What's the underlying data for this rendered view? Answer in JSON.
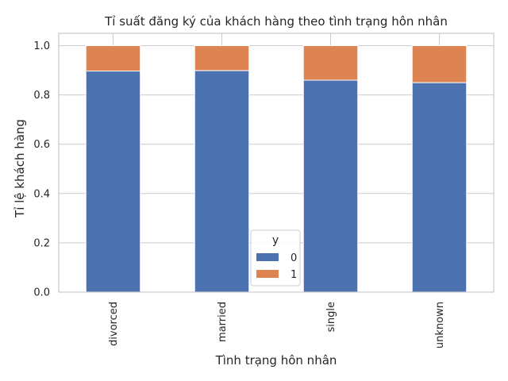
{
  "chart_data": {
    "type": "bar",
    "stacked": true,
    "title": "Tỉ suất đăng ký của khách hàng theo tình trạng hôn nhân",
    "xlabel": "Tình trạng hôn nhân",
    "ylabel": "Tỉ lệ khách hàng",
    "categories": [
      "divorced",
      "married",
      "single",
      "unknown"
    ],
    "series": [
      {
        "name": "0",
        "values": [
          0.897,
          0.899,
          0.86,
          0.85
        ],
        "color": "#4c72b0"
      },
      {
        "name": "1",
        "values": [
          0.103,
          0.101,
          0.14,
          0.15
        ],
        "color": "#dd8452"
      }
    ],
    "ylim": [
      0,
      1.05
    ],
    "yticks": [
      0.0,
      0.2,
      0.4,
      0.6,
      0.8,
      1.0
    ],
    "ytick_labels": [
      "0.0",
      "0.2",
      "0.4",
      "0.6",
      "0.8",
      "1.0"
    ],
    "grid": true,
    "legend": {
      "title": "y",
      "placement": "lower-center"
    }
  }
}
